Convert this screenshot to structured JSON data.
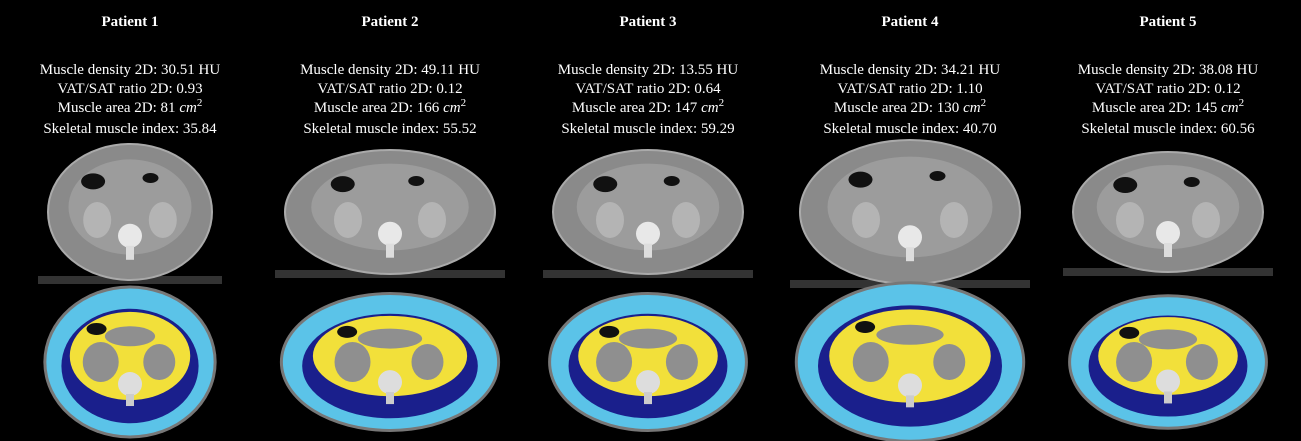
{
  "patients": [
    {
      "title": "Patient 1",
      "muscle_density": "Muscle density 2D: 30.51 HU",
      "vat_sat": "VAT/SAT ratio 2D: 0.93",
      "muscle_area": {
        "text": "Muscle area 2D: 81",
        "unit": "cm",
        "exponent": "2"
      },
      "smi": "Skeletal muscle index: 35.84"
    },
    {
      "title": "Patient 2",
      "muscle_density": "Muscle density 2D: 49.11 HU",
      "vat_sat": "VAT/SAT ratio 2D: 0.12",
      "muscle_area": {
        "text": "Muscle area 2D: 166",
        "unit": "cm",
        "exponent": "2"
      },
      "smi": "Skeletal muscle index: 55.52"
    },
    {
      "title": "Patient 3",
      "muscle_density": "Muscle density 2D: 13.55 HU",
      "vat_sat": "VAT/SAT ratio 2D: 0.64",
      "muscle_area": {
        "text": "Muscle area 2D: 147",
        "unit": "cm",
        "exponent": "2"
      },
      "smi": "Skeletal muscle index: 59.29"
    },
    {
      "title": "Patient 4",
      "muscle_density": "Muscle density 2D: 34.21 HU",
      "vat_sat": "VAT/SAT ratio 2D: 1.10",
      "muscle_area": {
        "text": "Muscle area 2D: 130",
        "unit": "cm",
        "exponent": "2"
      },
      "smi": "Skeletal muscle index: 40.70"
    },
    {
      "title": "Patient 5",
      "muscle_density": "Muscle density 2D: 38.08 HU",
      "vat_sat": "VAT/SAT ratio 2D: 0.12",
      "muscle_area": {
        "text": "Muscle area 2D: 145",
        "unit": "cm",
        "exponent": "2"
      },
      "smi": "Skeletal muscle index: 60.56"
    }
  ]
}
